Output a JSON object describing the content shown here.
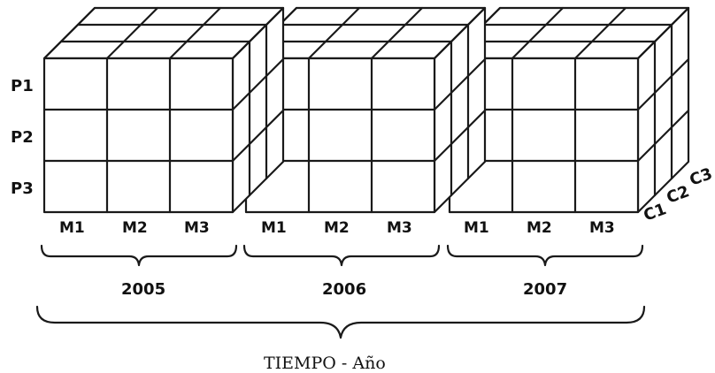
{
  "diagram": {
    "row_labels": [
      "P1",
      "P2",
      "P3"
    ],
    "depth_labels": [
      "C1",
      "C2",
      "C3"
    ],
    "blocks": [
      {
        "year": "2005",
        "months": [
          "M1",
          "M2",
          "M3"
        ]
      },
      {
        "year": "2006",
        "months": [
          "M1",
          "M2",
          "M3"
        ]
      },
      {
        "year": "2007",
        "months": [
          "M1",
          "M2",
          "M3"
        ]
      }
    ],
    "time_axis_label": "TIEMPO - Año"
  }
}
